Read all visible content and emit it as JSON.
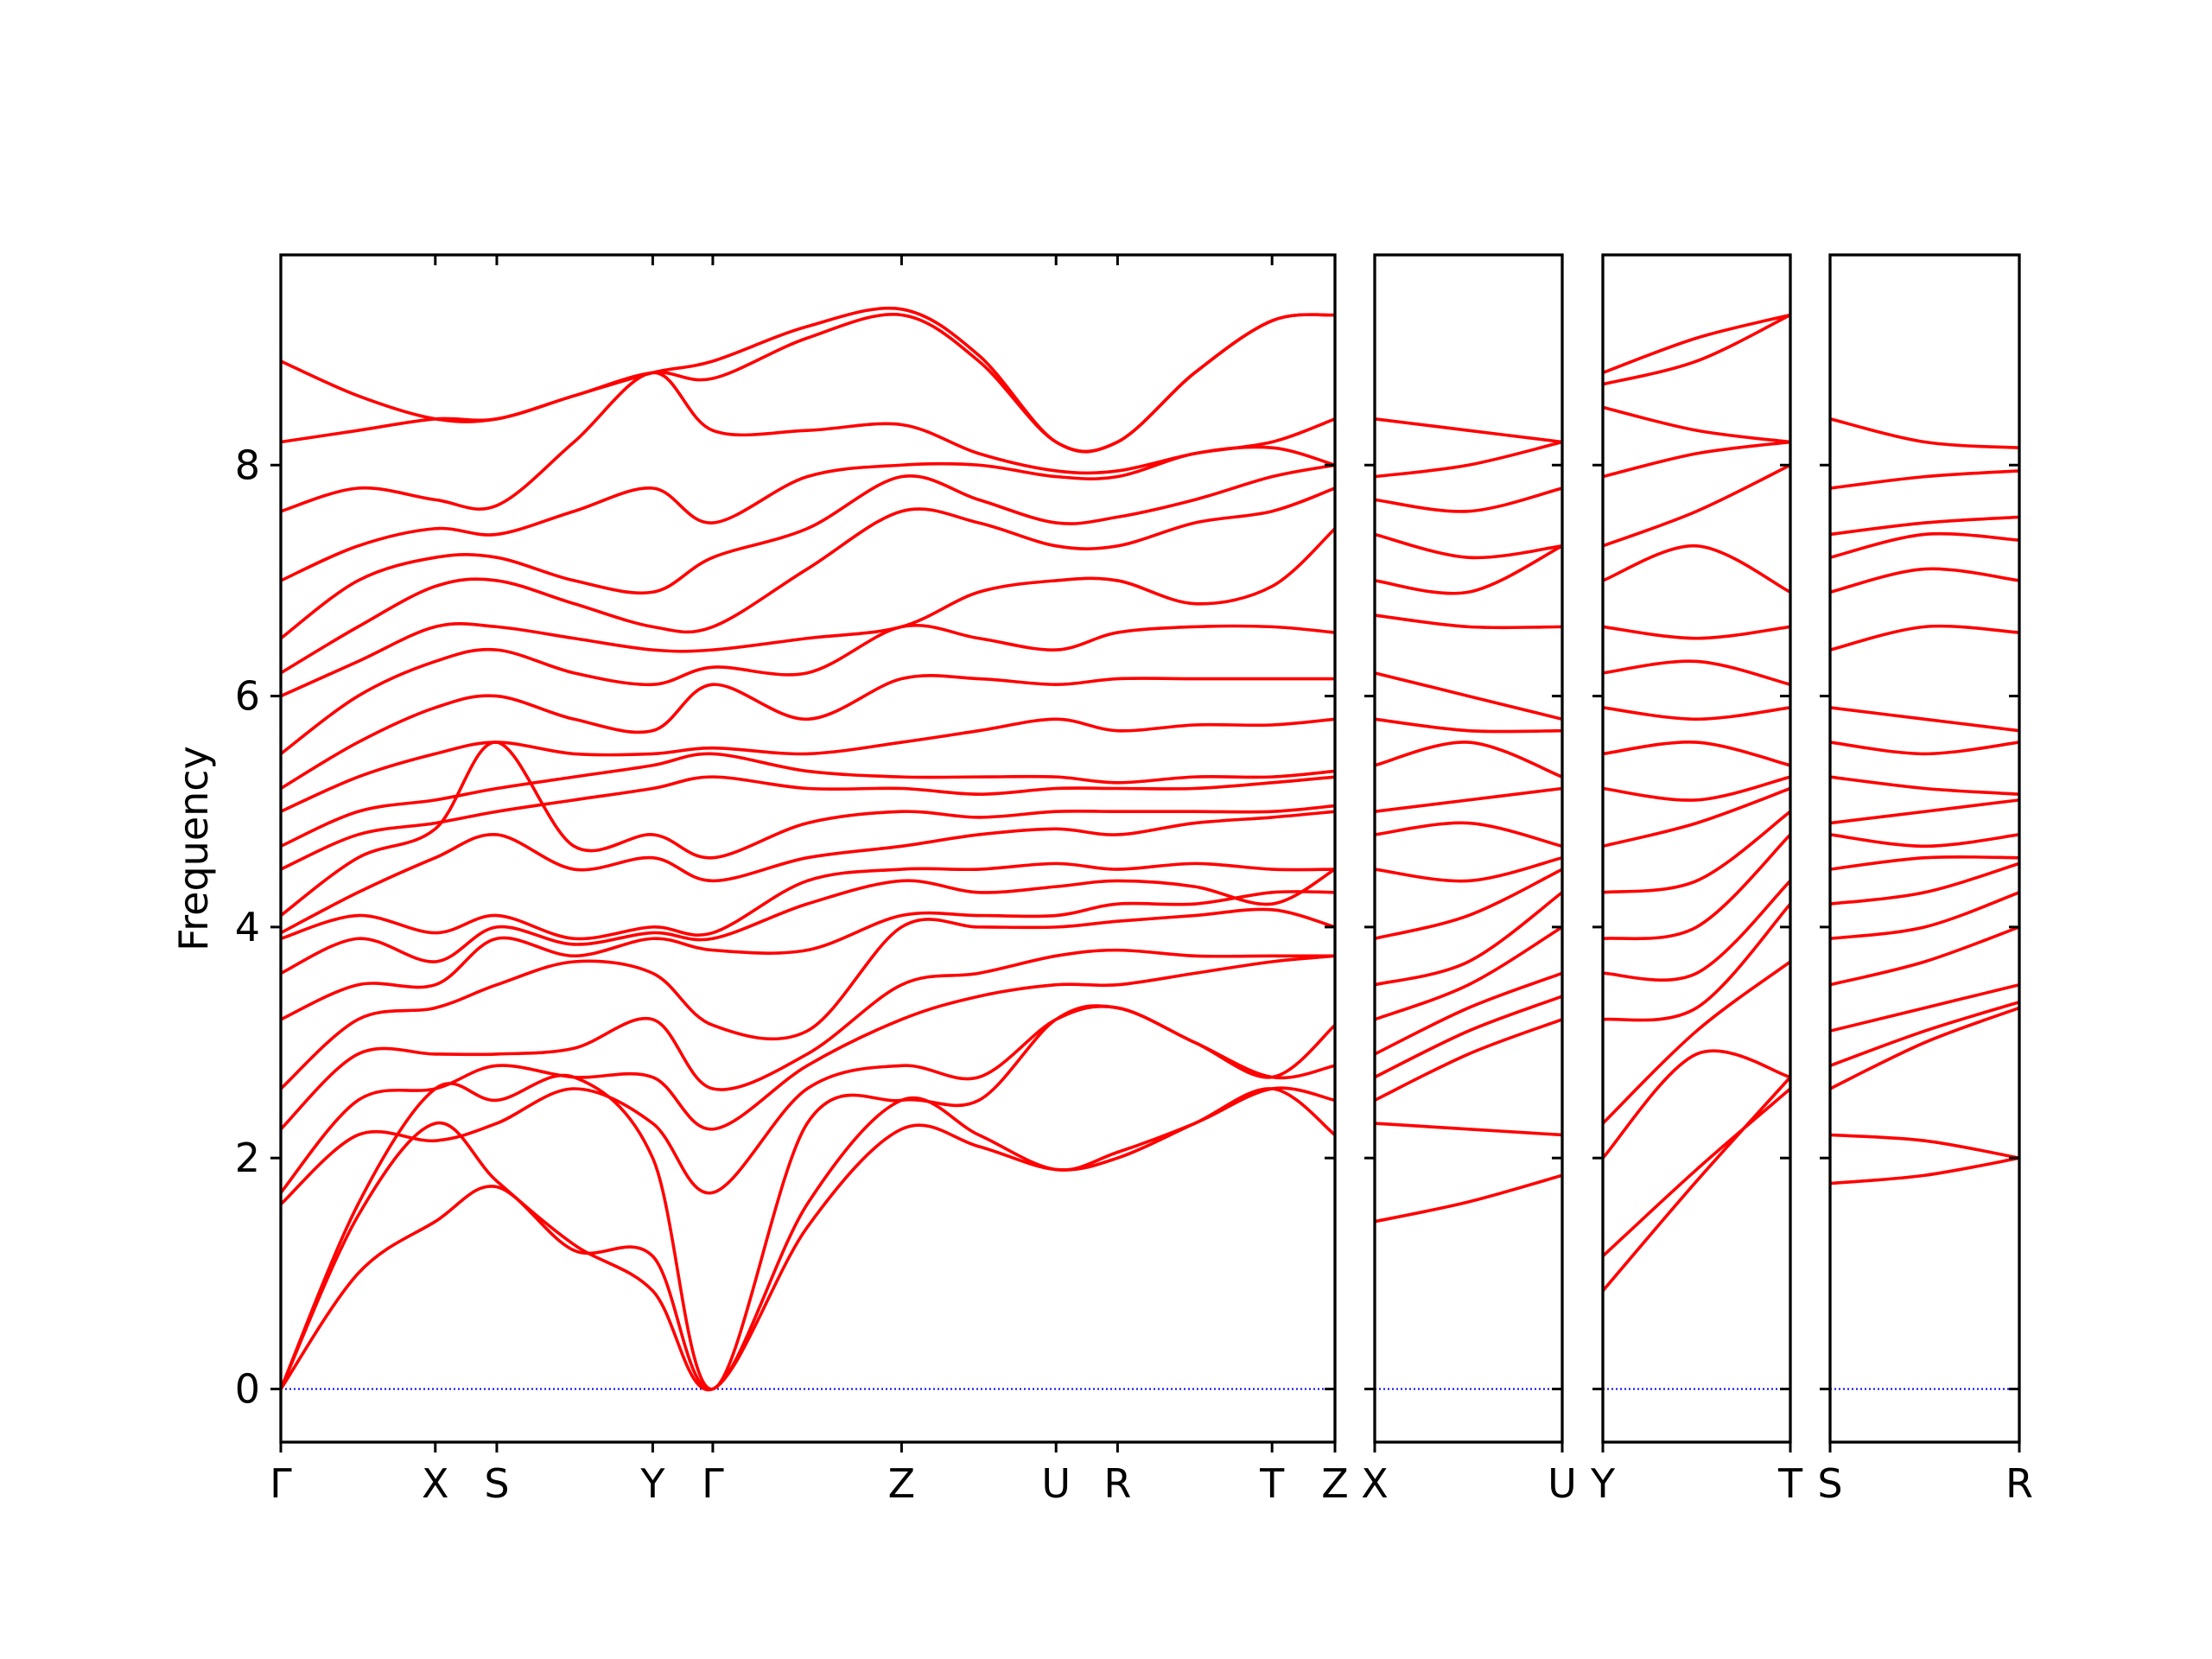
{
  "chart_data": [
    {
      "type": "line",
      "ylabel": "Frequency",
      "color": "#ff0000",
      "hline": {
        "value": 0,
        "color": "#0000ff"
      },
      "xlim": [
        0,
        7.37
      ],
      "ylim": [
        -0.46,
        9.82
      ],
      "ytick_labels": true,
      "xticks": [
        {
          "value": 0,
          "label": "Γ"
        },
        {
          "value": 1.08,
          "label": "X"
        },
        {
          "value": 1.51,
          "label": "S"
        },
        {
          "value": 2.6,
          "label": "Y"
        },
        {
          "value": 3.02,
          "label": "Γ"
        },
        {
          "value": 4.34,
          "label": "Z"
        },
        {
          "value": 5.42,
          "label": "U"
        },
        {
          "value": 5.85,
          "label": "R"
        },
        {
          "value": 6.93,
          "label": "T"
        },
        {
          "value": 7.37,
          "label": "Z"
        }
      ],
      "yticks": [
        0,
        2,
        4,
        6,
        8
      ],
      "x": [
        0,
        0.54,
        1.08,
        1.51,
        2.05,
        2.6,
        3.02,
        3.68,
        4.34,
        4.88,
        5.42,
        5.85,
        6.39,
        6.93,
        7.37
      ],
      "series": [
        {
          "values": [
            0,
            1.5,
            2.3,
            1.8,
            1.25,
            0.85,
            0,
            1.4,
            2.25,
            2.1,
            1.9,
            2.0,
            2.3,
            2.6,
            2.2
          ]
        },
        {
          "values": [
            0,
            1.0,
            1.45,
            1.75,
            1.2,
            1.15,
            0,
            1.6,
            2.5,
            2.2,
            1.9,
            2.05,
            2.3,
            2.6,
            2.5
          ]
        },
        {
          "values": [
            0,
            1.6,
            2.6,
            2.5,
            2.7,
            2.0,
            0,
            2.3,
            2.5,
            2.5,
            3.2,
            3.3,
            3.0,
            2.7,
            2.8
          ]
        },
        {
          "values": [
            1.6,
            2.2,
            2.15,
            2.3,
            2.6,
            2.3,
            1.7,
            2.6,
            2.8,
            2.7,
            3.2,
            3.3,
            3.0,
            2.7,
            3.15
          ]
        },
        {
          "values": [
            1.7,
            2.5,
            2.6,
            2.8,
            2.7,
            2.7,
            2.25,
            2.8,
            3.2,
            3.4,
            3.5,
            3.5,
            3.6,
            3.7,
            3.75
          ]
        },
        {
          "values": [
            2.25,
            2.9,
            2.9,
            2.9,
            2.95,
            3.2,
            2.6,
            2.9,
            3.5,
            3.6,
            3.75,
            3.8,
            3.75,
            3.75,
            3.75
          ]
        },
        {
          "values": [
            2.6,
            3.2,
            3.3,
            3.5,
            3.7,
            3.6,
            3.15,
            3.1,
            4.0,
            4.0,
            4.0,
            4.05,
            4.1,
            4.15,
            4.0
          ]
        },
        {
          "values": [
            3.2,
            3.5,
            3.5,
            3.9,
            3.75,
            3.9,
            3.8,
            3.8,
            4.1,
            4.1,
            4.1,
            4.2,
            4.2,
            4.3,
            4.3
          ]
        },
        {
          "values": [
            3.6,
            3.9,
            3.7,
            4.0,
            3.85,
            3.95,
            3.9,
            4.2,
            4.4,
            4.3,
            4.35,
            4.4,
            4.35,
            4.2,
            4.5
          ]
        },
        {
          "values": [
            3.9,
            4.1,
            3.95,
            4.1,
            3.9,
            4.0,
            3.95,
            4.4,
            4.5,
            4.5,
            4.55,
            4.5,
            4.55,
            4.5,
            4.5
          ]
        },
        {
          "values": [
            3.95,
            4.3,
            4.6,
            4.8,
            4.5,
            4.6,
            4.4,
            4.6,
            4.7,
            4.8,
            4.85,
            4.8,
            4.9,
            4.95,
            5.0
          ]
        },
        {
          "values": [
            4.1,
            4.6,
            4.85,
            5.6,
            4.7,
            4.8,
            4.6,
            4.9,
            5.0,
            4.95,
            5.0,
            5.0,
            5.0,
            5.0,
            5.05
          ]
        },
        {
          "values": [
            4.5,
            4.8,
            4.9,
            5.0,
            5.1,
            5.2,
            5.3,
            5.2,
            5.2,
            5.15,
            5.2,
            5.2,
            5.2,
            5.25,
            5.3
          ]
        },
        {
          "values": [
            4.7,
            5.0,
            5.1,
            5.2,
            5.3,
            5.4,
            5.5,
            5.35,
            5.3,
            5.3,
            5.3,
            5.25,
            5.3,
            5.3,
            5.35
          ]
        },
        {
          "values": [
            5.0,
            5.3,
            5.5,
            5.6,
            5.5,
            5.5,
            5.55,
            5.5,
            5.6,
            5.7,
            5.8,
            5.7,
            5.75,
            5.75,
            5.8
          ]
        },
        {
          "values": [
            5.2,
            5.6,
            5.9,
            6.0,
            5.8,
            5.7,
            6.1,
            5.8,
            6.15,
            6.15,
            6.1,
            6.15,
            6.15,
            6.15,
            6.15
          ]
        },
        {
          "values": [
            5.5,
            6.0,
            6.3,
            6.4,
            6.2,
            6.1,
            6.25,
            6.2,
            6.6,
            6.5,
            6.4,
            6.55,
            6.6,
            6.6,
            6.55
          ]
        },
        {
          "values": [
            6.0,
            6.3,
            6.6,
            6.6,
            6.5,
            6.4,
            6.4,
            6.5,
            6.6,
            6.9,
            7.0,
            7.0,
            6.8,
            6.95,
            7.45
          ]
        },
        {
          "values": [
            6.2,
            6.6,
            6.95,
            7.0,
            6.8,
            6.6,
            6.6,
            7.1,
            7.6,
            7.5,
            7.3,
            7.3,
            7.5,
            7.6,
            7.8
          ]
        },
        {
          "values": [
            6.5,
            7.0,
            7.2,
            7.2,
            7.0,
            6.9,
            7.2,
            7.45,
            7.9,
            7.7,
            7.5,
            7.55,
            7.7,
            7.9,
            8.0
          ]
        },
        {
          "values": [
            7.0,
            7.3,
            7.45,
            7.4,
            7.6,
            7.8,
            7.5,
            7.9,
            8.0,
            8.0,
            7.9,
            7.9,
            8.1,
            8.15,
            8.0
          ]
        },
        {
          "values": [
            7.6,
            7.8,
            7.7,
            7.65,
            8.2,
            8.8,
            8.3,
            8.3,
            8.35,
            8.1,
            7.95,
            7.95,
            8.1,
            8.2,
            8.4
          ]
        },
        {
          "values": [
            8.2,
            8.3,
            8.4,
            8.4,
            8.6,
            8.8,
            8.75,
            9.1,
            9.3,
            8.9,
            8.2,
            8.2,
            8.8,
            9.25,
            9.3
          ]
        },
        {
          "values": [
            8.9,
            8.6,
            8.4,
            8.4,
            8.6,
            8.8,
            8.9,
            9.2,
            9.35,
            8.95,
            8.2,
            8.2,
            8.8,
            9.25,
            9.3
          ]
        }
      ]
    },
    {
      "type": "line",
      "color": "#ff0000",
      "hline": {
        "value": 0,
        "color": "#0000ff"
      },
      "xlim": [
        0,
        1.31
      ],
      "ylim": [
        -0.46,
        9.82
      ],
      "ytick_labels": false,
      "xticks": [
        {
          "value": 0,
          "label": "X"
        },
        {
          "value": 1.31,
          "label": "U"
        }
      ],
      "yticks": [
        0,
        2,
        4,
        6,
        8
      ],
      "x": [
        0,
        0.655,
        1.31
      ],
      "series": [
        {
          "values": [
            1.45,
            1.62,
            1.85
          ]
        },
        {
          "values": [
            2.3,
            2.25,
            2.2
          ]
        },
        {
          "values": [
            2.5,
            2.9,
            3.2
          ]
        },
        {
          "values": [
            2.7,
            3.1,
            3.4
          ]
        },
        {
          "values": [
            2.9,
            3.3,
            3.6
          ]
        },
        {
          "values": [
            3.2,
            3.5,
            4.0
          ]
        },
        {
          "values": [
            3.5,
            3.7,
            4.3
          ]
        },
        {
          "values": [
            3.9,
            4.1,
            4.5
          ]
        },
        {
          "values": [
            4.5,
            4.4,
            4.6
          ]
        },
        {
          "values": [
            4.8,
            4.9,
            4.7
          ]
        },
        {
          "values": [
            5.0,
            5.1,
            5.2
          ]
        },
        {
          "values": [
            5.4,
            5.6,
            5.3
          ]
        },
        {
          "values": [
            5.8,
            5.7,
            5.7
          ]
        },
        {
          "values": [
            6.2,
            6.0,
            5.8
          ]
        },
        {
          "values": [
            6.7,
            6.6,
            6.6
          ]
        },
        {
          "values": [
            7.0,
            6.9,
            7.3
          ]
        },
        {
          "values": [
            7.4,
            7.2,
            7.3
          ]
        },
        {
          "values": [
            7.7,
            7.6,
            7.8
          ]
        },
        {
          "values": [
            7.9,
            8.0,
            8.2
          ]
        },
        {
          "values": [
            8.4,
            8.3,
            8.2
          ]
        }
      ]
    },
    {
      "type": "line",
      "color": "#ff0000",
      "hline": {
        "value": 0,
        "color": "#0000ff"
      },
      "xlim": [
        0,
        1.31
      ],
      "ylim": [
        -0.46,
        9.82
      ],
      "ytick_labels": false,
      "xticks": [
        {
          "value": 0,
          "label": "Y"
        },
        {
          "value": 1.31,
          "label": "T"
        }
      ],
      "yticks": [
        0,
        2,
        4,
        6,
        8
      ],
      "x": [
        0,
        0.655,
        1.31
      ],
      "series": [
        {
          "values": [
            0.85,
            1.8,
            2.7
          ]
        },
        {
          "values": [
            1.15,
            1.9,
            2.6
          ]
        },
        {
          "values": [
            2.0,
            2.9,
            2.7
          ]
        },
        {
          "values": [
            2.3,
            3.1,
            3.7
          ]
        },
        {
          "values": [
            3.2,
            3.3,
            4.2
          ]
        },
        {
          "values": [
            3.6,
            3.6,
            4.4
          ]
        },
        {
          "values": [
            3.9,
            4.0,
            4.8
          ]
        },
        {
          "values": [
            4.3,
            4.4,
            5.0
          ]
        },
        {
          "values": [
            4.7,
            4.9,
            5.2
          ]
        },
        {
          "values": [
            5.2,
            5.1,
            5.3
          ]
        },
        {
          "values": [
            5.5,
            5.6,
            5.4
          ]
        },
        {
          "values": [
            5.9,
            5.8,
            5.9
          ]
        },
        {
          "values": [
            6.2,
            6.3,
            6.1
          ]
        },
        {
          "values": [
            6.6,
            6.5,
            6.6
          ]
        },
        {
          "values": [
            7.0,
            7.3,
            6.9
          ]
        },
        {
          "values": [
            7.3,
            7.6,
            8.0
          ]
        },
        {
          "values": [
            7.9,
            8.1,
            8.2
          ]
        },
        {
          "values": [
            8.5,
            8.3,
            8.2
          ]
        },
        {
          "values": [
            8.7,
            8.9,
            9.3
          ]
        },
        {
          "values": [
            8.8,
            9.1,
            9.3
          ]
        }
      ]
    },
    {
      "type": "line",
      "color": "#ff0000",
      "hline": {
        "value": 0,
        "color": "#0000ff"
      },
      "xlim": [
        0,
        1.32
      ],
      "ylim": [
        -0.46,
        9.82
      ],
      "ytick_labels": false,
      "xticks": [
        {
          "value": 0,
          "label": "S"
        },
        {
          "value": 1.32,
          "label": "R"
        }
      ],
      "yticks": [
        0,
        2,
        4,
        6,
        8
      ],
      "x": [
        0,
        0.66,
        1.32
      ],
      "series": [
        {
          "values": [
            1.78,
            1.85,
            2.0
          ]
        },
        {
          "values": [
            2.2,
            2.15,
            2.0
          ]
        },
        {
          "values": [
            2.6,
            3.0,
            3.3
          ]
        },
        {
          "values": [
            2.8,
            3.1,
            3.35
          ]
        },
        {
          "values": [
            3.1,
            3.3,
            3.5
          ]
        },
        {
          "values": [
            3.5,
            3.7,
            4.0
          ]
        },
        {
          "values": [
            3.9,
            4.0,
            4.3
          ]
        },
        {
          "values": [
            4.2,
            4.3,
            4.55
          ]
        },
        {
          "values": [
            4.5,
            4.6,
            4.6
          ]
        },
        {
          "values": [
            4.8,
            4.7,
            4.8
          ]
        },
        {
          "values": [
            4.9,
            5.0,
            5.1
          ]
        },
        {
          "values": [
            5.3,
            5.2,
            5.15
          ]
        },
        {
          "values": [
            5.6,
            5.5,
            5.6
          ]
        },
        {
          "values": [
            5.9,
            5.8,
            5.7
          ]
        },
        {
          "values": [
            6.4,
            6.6,
            6.55
          ]
        },
        {
          "values": [
            6.9,
            7.1,
            7.0
          ]
        },
        {
          "values": [
            7.2,
            7.4,
            7.35
          ]
        },
        {
          "values": [
            7.4,
            7.5,
            7.55
          ]
        },
        {
          "values": [
            7.8,
            7.9,
            7.95
          ]
        },
        {
          "values": [
            8.4,
            8.2,
            8.15
          ]
        }
      ]
    }
  ]
}
